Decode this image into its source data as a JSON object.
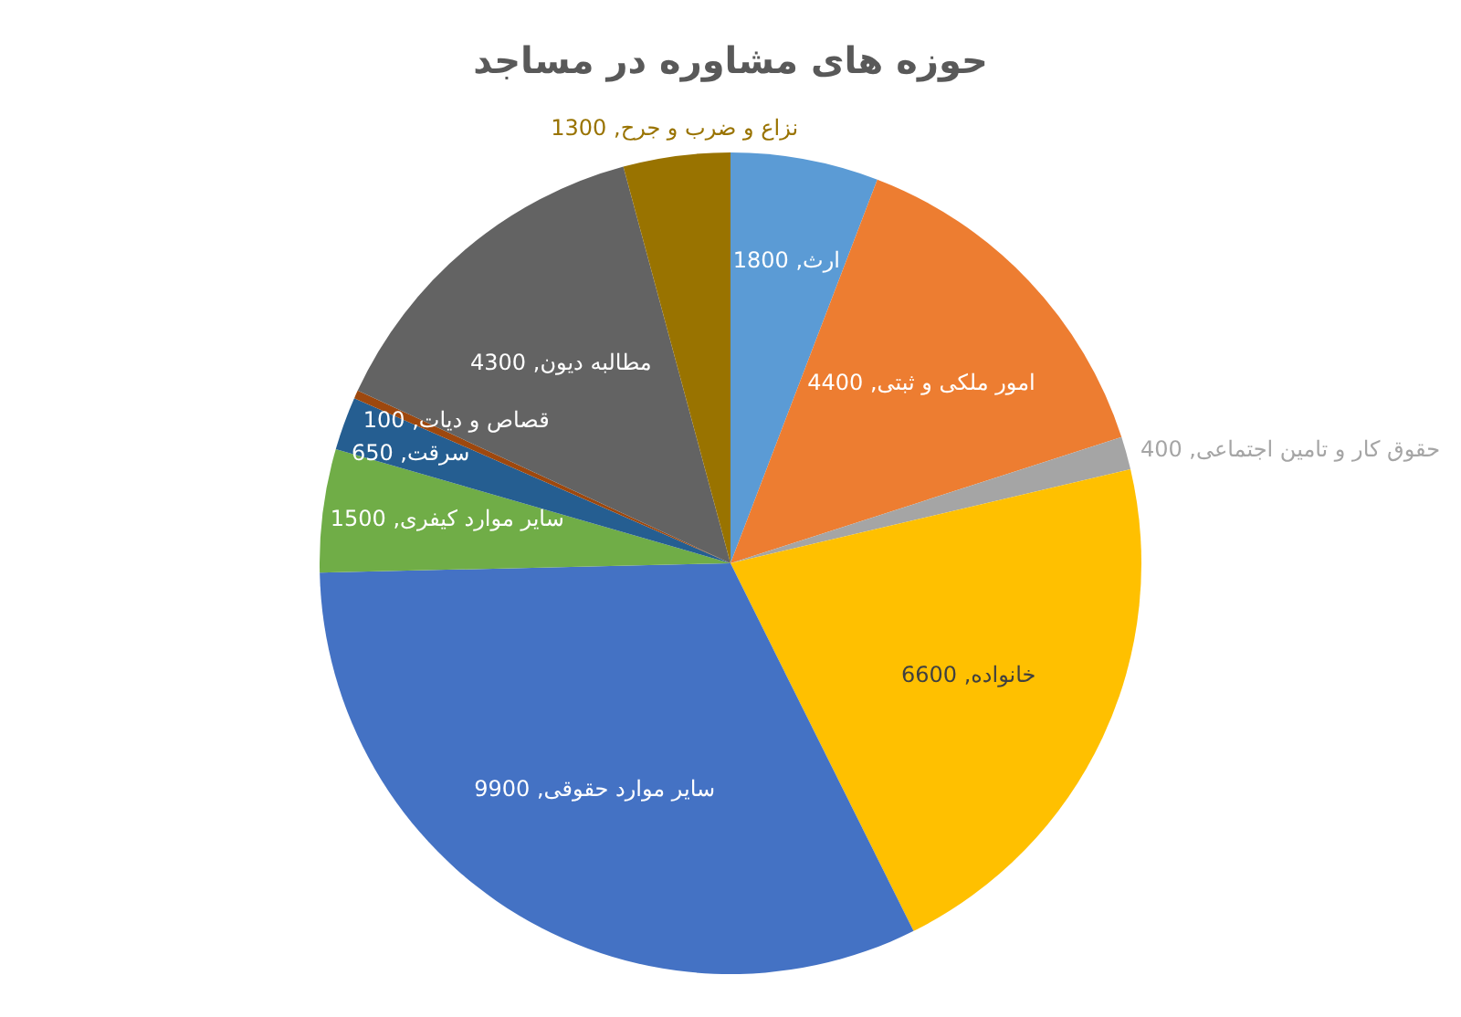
{
  "chart_data": {
    "type": "pie",
    "title": "حوزه های مشاوره در مساجد",
    "categories": [
      "ارث",
      "امور ملکی و ثبتی",
      "حقوق کار و تامین اجتماعی",
      "خانواده",
      "سایر موارد حقوقی",
      "سایر موارد کیفری",
      "سرقت",
      "قصاص و دیات",
      "مطالبه دیون",
      "نزاع و ضرب و جرح"
    ],
    "values": [
      1800,
      4400,
      400,
      6600,
      9900,
      1500,
      650,
      100,
      4300,
      1300
    ],
    "value_labels": [
      ", 1800",
      ", 4400",
      ", 400",
      ", 6600",
      ", 9900",
      ", 1500",
      ", 650",
      ", 100",
      ", 4300",
      ", 1300"
    ],
    "colors": [
      "#5b9bd5",
      "#ed7d31",
      "#a5a5a5",
      "#ffc000",
      "#4472c4",
      "#70ad47",
      "#255e91",
      "#9e480e",
      "#636363",
      "#997300"
    ]
  }
}
